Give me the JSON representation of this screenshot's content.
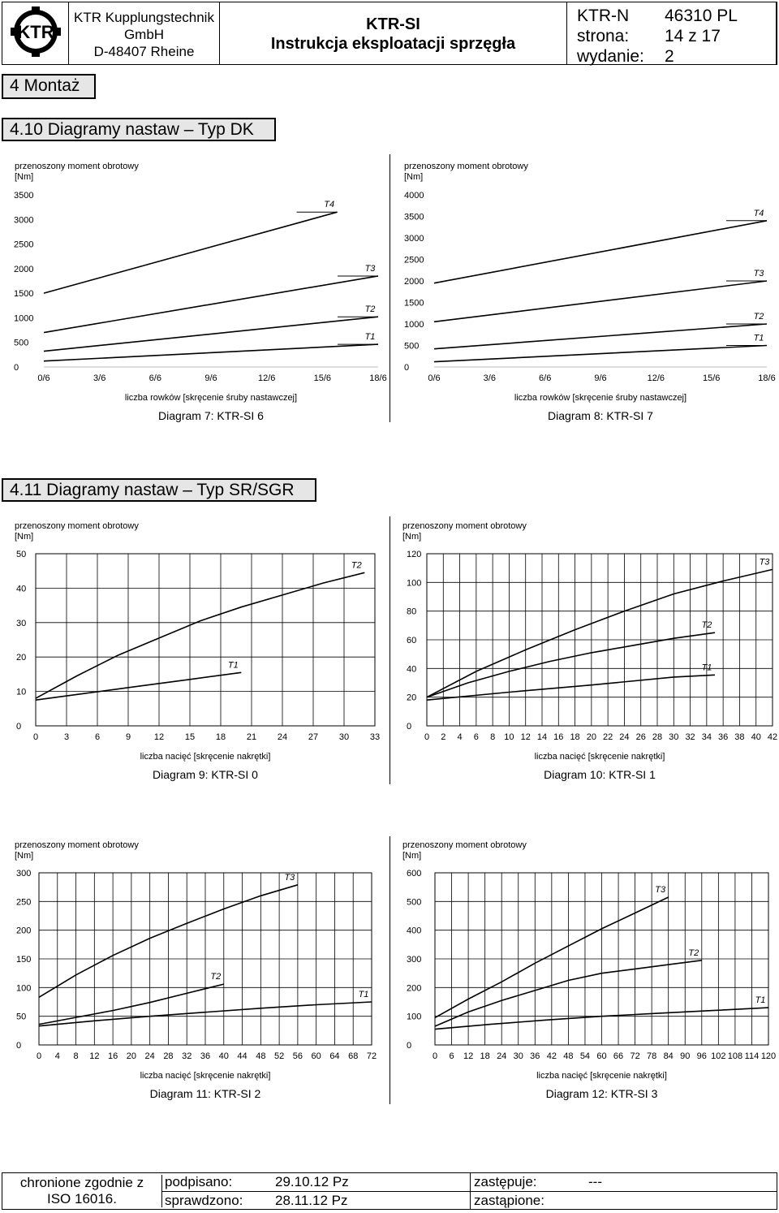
{
  "header": {
    "logo_text": "KTR",
    "company_lines": [
      "KTR Kupplungstechnik",
      "GmbH",
      "D-48407 Rheine"
    ],
    "doc_title": "KTR-SI",
    "doc_subtitle": "Instrukcja eksploatacji sprzęgła",
    "doc_code": "KTR-N",
    "doc_number": "46310 PL",
    "page_label": "strona:",
    "page_value": "14 z 17",
    "edition_label": "wydanie:",
    "edition_value": "2"
  },
  "sections": {
    "chapter": "4 Montaż",
    "s410": "4.10 Diagramy nastaw – Typ DK",
    "s411": "4.11 Diagramy nastaw – Typ SR/SGR"
  },
  "common": {
    "y_label_line1": "przenoszony moment obrotowy",
    "y_label_line2": "[Nm]"
  },
  "chart_data": [
    {
      "type": "line",
      "title": "Diagram 7: KTR-SI 6",
      "xlabel": "liczba rowków [skręcenie śruby nastawczej]",
      "ylabel": "przenoszony moment obrotowy [Nm]",
      "x_ticks": [
        "0/6",
        "3/6",
        "6/6",
        "9/6",
        "12/6",
        "15/6",
        "18/6"
      ],
      "xlim": [
        0,
        18
      ],
      "y_ticks": [
        0,
        500,
        1000,
        1500,
        2000,
        2500,
        3000,
        3500
      ],
      "ylim": [
        0,
        3500
      ],
      "grid": false,
      "series": [
        {
          "name": "T4",
          "x": [
            0,
            15.8
          ],
          "y": [
            1500,
            3150
          ]
        },
        {
          "name": "T3",
          "x": [
            0,
            18
          ],
          "y": [
            700,
            1850
          ]
        },
        {
          "name": "T2",
          "x": [
            0,
            18
          ],
          "y": [
            320,
            1020
          ]
        },
        {
          "name": "T1",
          "x": [
            0,
            18
          ],
          "y": [
            120,
            460
          ]
        }
      ]
    },
    {
      "type": "line",
      "title": "Diagram 8: KTR-SI 7",
      "xlabel": "liczba rowków [skręcenie śruby nastawczej]",
      "ylabel": "przenoszony moment obrotowy [Nm]",
      "x_ticks": [
        "0/6",
        "3/6",
        "6/6",
        "9/6",
        "12/6",
        "15/6",
        "18/6"
      ],
      "xlim": [
        0,
        18
      ],
      "y_ticks": [
        0,
        500,
        1000,
        1500,
        2000,
        2500,
        3000,
        3500,
        4000
      ],
      "ylim": [
        0,
        4000
      ],
      "grid": false,
      "series": [
        {
          "name": "T4",
          "x": [
            0,
            18
          ],
          "y": [
            1950,
            3400
          ]
        },
        {
          "name": "T3",
          "x": [
            0,
            18
          ],
          "y": [
            1050,
            2000
          ]
        },
        {
          "name": "T2",
          "x": [
            0,
            18
          ],
          "y": [
            420,
            1000
          ]
        },
        {
          "name": "T1",
          "x": [
            0,
            18
          ],
          "y": [
            120,
            500
          ]
        }
      ]
    },
    {
      "type": "line",
      "title": "Diagram 9: KTR-SI 0",
      "xlabel": "liczba nacięć [skręcenie nakrętki]",
      "ylabel": "przenoszony moment obrotowy [Nm]",
      "x_ticks": [
        0,
        3,
        6,
        9,
        12,
        15,
        18,
        21,
        24,
        27,
        30,
        33
      ],
      "xlim": [
        0,
        33
      ],
      "y_ticks": [
        0,
        10,
        20,
        30,
        40,
        50
      ],
      "ylim": [
        0,
        50
      ],
      "grid": true,
      "series": [
        {
          "name": "T2",
          "x": [
            0,
            4,
            8,
            12,
            16,
            20,
            24,
            28,
            32
          ],
          "y": [
            8,
            14.5,
            20.5,
            25.5,
            30.5,
            34.5,
            38,
            41.5,
            44.5
          ]
        },
        {
          "name": "T1",
          "x": [
            0,
            5,
            10,
            15,
            20
          ],
          "y": [
            7.5,
            9.5,
            11.5,
            13.5,
            15.5
          ]
        }
      ]
    },
    {
      "type": "line",
      "title": "Diagram 10: KTR-SI 1",
      "xlabel": "liczba nacięć [skręcenie nakrętki]",
      "ylabel": "przenoszony moment obrotowy [Nm]",
      "x_ticks": [
        0,
        2,
        4,
        6,
        8,
        10,
        12,
        14,
        16,
        18,
        20,
        22,
        24,
        26,
        28,
        30,
        32,
        34,
        36,
        38,
        40,
        42
      ],
      "xlim": [
        0,
        42
      ],
      "y_ticks": [
        0,
        20,
        40,
        60,
        80,
        100,
        120
      ],
      "ylim": [
        0,
        120
      ],
      "grid": true,
      "series": [
        {
          "name": "T3",
          "x": [
            0,
            6,
            12,
            18,
            24,
            30,
            36,
            42
          ],
          "y": [
            20,
            38,
            53,
            67,
            80,
            92,
            101,
            109
          ]
        },
        {
          "name": "T2",
          "x": [
            0,
            5,
            10,
            15,
            20,
            25,
            30,
            35
          ],
          "y": [
            20,
            30,
            38,
            45,
            51,
            56,
            61,
            65
          ]
        },
        {
          "name": "T1",
          "x": [
            0,
            10,
            20,
            30,
            35
          ],
          "y": [
            18,
            23.5,
            28.5,
            34,
            35.5
          ]
        }
      ]
    },
    {
      "type": "line",
      "title": "Diagram 11: KTR-SI 2",
      "xlabel": "liczba nacięć [skręcenie nakrętki]",
      "ylabel": "przenoszony moment obrotowy [Nm]",
      "x_ticks": [
        0,
        4,
        8,
        12,
        16,
        20,
        24,
        28,
        32,
        36,
        40,
        44,
        48,
        52,
        56,
        60,
        64,
        68,
        72
      ],
      "xlim": [
        0,
        72
      ],
      "y_ticks": [
        0,
        50,
        100,
        150,
        200,
        250,
        300
      ],
      "ylim": [
        0,
        300
      ],
      "grid": true,
      "series": [
        {
          "name": "T3",
          "x": [
            0,
            8,
            16,
            24,
            32,
            40,
            48,
            56
          ],
          "y": [
            83,
            122,
            156,
            186,
            212,
            237,
            260,
            279
          ]
        },
        {
          "name": "T2",
          "x": [
            0,
            8,
            16,
            24,
            32,
            40
          ],
          "y": [
            36,
            48,
            60,
            74,
            90,
            106
          ]
        },
        {
          "name": "T1",
          "x": [
            0,
            12,
            24,
            36,
            48,
            60,
            72
          ],
          "y": [
            33,
            42,
            50,
            57,
            64,
            70,
            75
          ]
        }
      ]
    },
    {
      "type": "line",
      "title": "Diagram 12: KTR-SI 3",
      "xlabel": "liczba nacięć [skręcenie nakrętki]",
      "ylabel": "przenoszony moment obrotowy [Nm]",
      "x_ticks": [
        0,
        6,
        12,
        18,
        24,
        30,
        36,
        42,
        48,
        54,
        60,
        66,
        72,
        78,
        84,
        90,
        96,
        102,
        108,
        114,
        120
      ],
      "xlim": [
        0,
        120
      ],
      "y_ticks": [
        0,
        100,
        200,
        300,
        400,
        500,
        600
      ],
      "ylim": [
        0,
        600
      ],
      "grid": true,
      "series": [
        {
          "name": "T3",
          "x": [
            0,
            12,
            24,
            36,
            48,
            60,
            72,
            84
          ],
          "y": [
            95,
            160,
            220,
            285,
            345,
            405,
            460,
            515
          ]
        },
        {
          "name": "T2",
          "x": [
            0,
            12,
            24,
            36,
            48,
            60,
            72,
            84,
            96
          ],
          "y": [
            65,
            115,
            155,
            190,
            225,
            250,
            265,
            280,
            295
          ]
        },
        {
          "name": "T1",
          "x": [
            0,
            20,
            40,
            60,
            80,
            100,
            120
          ],
          "y": [
            55,
            72,
            87,
            100,
            110,
            120,
            130
          ]
        }
      ]
    }
  ],
  "footer": {
    "compliance_line1": "chronione zgodnie z",
    "compliance_line2": "ISO 16016.",
    "signed_label": "podpisano:",
    "signed_value": "29.10.12 Pz",
    "checked_label": "sprawdzono:",
    "checked_value": "28.11.12 Pz",
    "replaces_label": "zastępuje:",
    "replaces_value": "---",
    "replaced_label": "zastąpione:"
  }
}
